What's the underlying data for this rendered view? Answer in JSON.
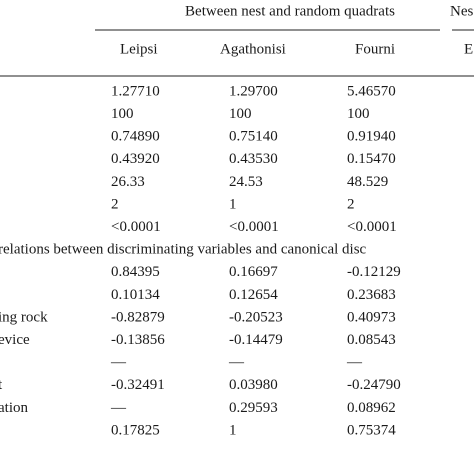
{
  "table": {
    "group": "Between nest and random quadrats",
    "group2": "Nes",
    "columns": [
      "Leipsi",
      "Agathonisi",
      "Fourni",
      "E"
    ],
    "rows": [
      {
        "cells": [
          "1.27710",
          "1.29700",
          "5.46570"
        ]
      },
      {
        "cells": [
          "100",
          "100",
          "100"
        ]
      },
      {
        "cells": [
          "0.74890",
          "0.75140",
          "0.91940"
        ]
      },
      {
        "cells": [
          "0.43920",
          "0.43530",
          "0.15470"
        ]
      },
      {
        "cells": [
          "26.33",
          "24.53",
          "48.529"
        ]
      },
      {
        "cells": [
          "2",
          "1",
          "2"
        ]
      },
      {
        "cells": [
          "<0.0001",
          "<0.0001",
          "<0.0001"
        ]
      },
      {
        "section": "relations between discriminating variables and canonical disc"
      },
      {
        "cells": [
          "0.84395",
          "0.16697",
          "-0.12129"
        ]
      },
      {
        "cells": [
          "0.10134",
          "0.12654",
          "0.23683"
        ]
      },
      {
        "label": "ing rock",
        "cells": [
          "-0.82879",
          "-0.20523",
          "0.40973"
        ]
      },
      {
        "label": "evice",
        "cells": [
          "-0.13856",
          "-0.14479",
          "0.08543"
        ]
      },
      {
        "cells": [
          "—",
          "—",
          "—"
        ]
      },
      {
        "label": "t",
        "cells": [
          "-0.32491",
          "0.03980",
          "-0.24790"
        ]
      },
      {
        "label": "ation",
        "cells": [
          "—",
          "0.29593",
          "0.08962"
        ]
      },
      {
        "cells": [
          "0.17825",
          "1",
          "0.75374"
        ]
      }
    ]
  }
}
